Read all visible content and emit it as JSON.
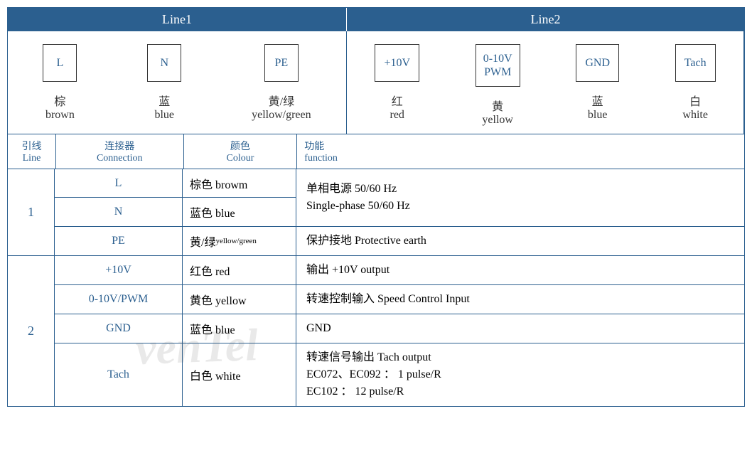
{
  "colors": {
    "primary": "#2b5f8f",
    "border": "#2b5f8f",
    "text": "#333"
  },
  "headers": {
    "line1": "Line1",
    "line2": "Line2"
  },
  "terminals": {
    "line1": [
      {
        "box": "L",
        "cn": "棕",
        "en": "brown"
      },
      {
        "box": "N",
        "cn": "蓝",
        "en": "blue"
      },
      {
        "box": "PE",
        "cn": "黄/绿",
        "en": "yellow/green"
      }
    ],
    "line2": [
      {
        "box": "+10V",
        "cn": "红",
        "en": "red"
      },
      {
        "box": "0-10V\nPWM",
        "cn": "黄",
        "en": "yellow"
      },
      {
        "box": "GND",
        "cn": "蓝",
        "en": "blue"
      },
      {
        "box": "Tach",
        "cn": "白",
        "en": "white"
      }
    ]
  },
  "tableHeaders": {
    "line": {
      "cn": "引线",
      "en": "Line"
    },
    "connection": {
      "cn": "连接器",
      "en": "Connection"
    },
    "colour": {
      "cn": "颜色",
      "en": "Colour"
    },
    "function": {
      "cn": "功能",
      "en": "function"
    }
  },
  "sections": [
    {
      "line": "1",
      "mergedFunc": "单相电源 50/60 Hz\nSingle-phase 50/60 Hz",
      "mergedRows": [
        {
          "conn": "L",
          "colour": "棕色 browm"
        },
        {
          "conn": "N",
          "colour": "蓝色 blue"
        }
      ],
      "rows": [
        {
          "conn": "PE",
          "colour": "黄/绿yellow/green",
          "colourSmall": true,
          "func": "保护接地 Protective earth"
        }
      ]
    },
    {
      "line": "2",
      "rows": [
        {
          "conn": "+10V",
          "colour": "红色 red",
          "func": "输出 +10V output"
        },
        {
          "conn": "0-10V/PWM",
          "colour": "黄色 yellow",
          "func": "转速控制输入 Speed Control Input"
        },
        {
          "conn": "GND",
          "colour": "蓝色 blue",
          "func": " GND"
        },
        {
          "conn": "Tach",
          "colour": "白色 white",
          "func": "转速信号输出 Tach output\nEC072、EC092 ： 1 pulse/R\nEC102 ： 12 pulse/R"
        }
      ]
    }
  ],
  "watermark": "venTel"
}
